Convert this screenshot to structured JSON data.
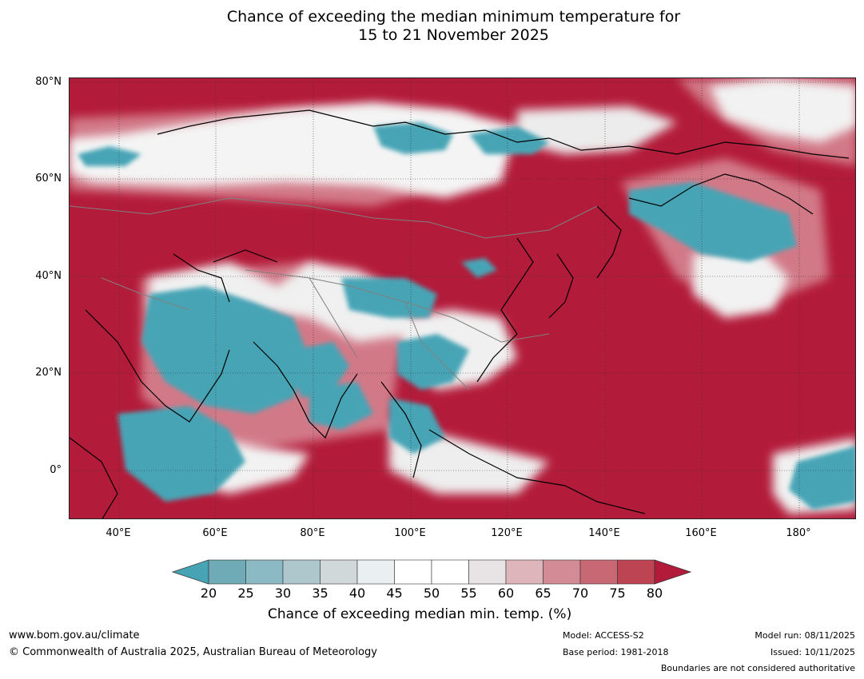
{
  "title": {
    "line1": "Chance of exceeding the median minimum temperature for",
    "line2": "15 to 21 November 2025"
  },
  "map": {
    "lat_labels": [
      "80°N",
      "60°N",
      "40°N",
      "20°N",
      "0°"
    ],
    "lon_labels": [
      "40°E",
      "60°E",
      "80°E",
      "100°E",
      "120°E",
      "140°E",
      "160°E",
      "180°"
    ],
    "colors": {
      "ocean_high": "#b31b3a",
      "low": "#46a4b5",
      "near_median": "#f2f2f2",
      "coast": "#000000",
      "border": "#808080"
    }
  },
  "colorbar": {
    "ticks": [
      "20",
      "25",
      "30",
      "35",
      "40",
      "45",
      "50",
      "55",
      "60",
      "65",
      "70",
      "75",
      "80"
    ],
    "colors": [
      "#46a4b5",
      "#6faab7",
      "#8bbac4",
      "#adc7cc",
      "#d1d8da",
      "#eaf0f2",
      "#ffffff",
      "#ffffff",
      "#e8e4e5",
      "#dfb5bc",
      "#d38b96",
      "#c86874",
      "#bd4452",
      "#b31b3a"
    ],
    "label": "Chance of exceeding median min. temp. (%)"
  },
  "footer": {
    "url": "www.bom.gov.au/climate",
    "copyright": "© Commonwealth of Australia 2025, Australian Bureau of Meteorology",
    "model": "Model: ACCESS-S2",
    "base_period": "Base period: 1981-2018",
    "model_run": "Model run: 08/11/2025",
    "issued": "Issued: 10/11/2025",
    "disclaimer": "Boundaries are not considered authoritative"
  }
}
